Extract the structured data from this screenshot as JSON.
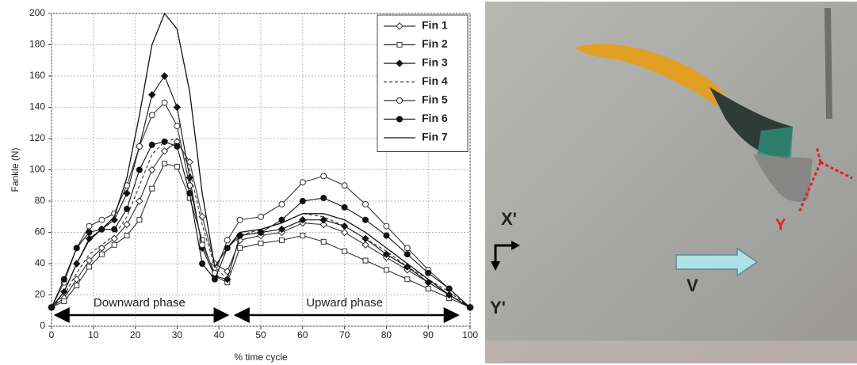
{
  "chart_data": {
    "type": "line",
    "xlabel": "% time cycle",
    "ylabel": "Fankle (N)",
    "x": [
      0,
      3,
      6,
      9,
      12,
      15,
      18,
      21,
      24,
      27,
      30,
      33,
      36,
      39,
      42,
      45,
      50,
      55,
      60,
      65,
      70,
      75,
      80,
      85,
      90,
      95,
      100
    ],
    "series": [
      {
        "name": "Fin 1",
        "color": "#333333",
        "marker": "diamond",
        "dash": false,
        "values": [
          12,
          18,
          30,
          42,
          50,
          56,
          65,
          80,
          100,
          112,
          118,
          105,
          70,
          40,
          35,
          55,
          58,
          60,
          66,
          65,
          60,
          52,
          44,
          36,
          28,
          20,
          12
        ]
      },
      {
        "name": "Fin 2",
        "color": "#333333",
        "marker": "square",
        "dash": false,
        "values": [
          12,
          16,
          26,
          38,
          46,
          52,
          58,
          68,
          88,
          104,
          102,
          82,
          55,
          32,
          28,
          50,
          53,
          55,
          58,
          54,
          48,
          42,
          36,
          30,
          24,
          18,
          12
        ]
      },
      {
        "name": "Fin 3",
        "color": "#111111",
        "marker": "filled-diamond",
        "dash": false,
        "values": [
          12,
          22,
          40,
          56,
          62,
          68,
          85,
          115,
          148,
          160,
          140,
          95,
          50,
          32,
          30,
          58,
          60,
          62,
          68,
          68,
          64,
          56,
          46,
          38,
          28,
          20,
          12
        ]
      },
      {
        "name": "Fin 4",
        "color": "#333333",
        "marker": "none",
        "dash": true,
        "values": [
          12,
          20,
          34,
          46,
          52,
          58,
          70,
          90,
          110,
          118,
          120,
          100,
          65,
          38,
          30,
          58,
          62,
          66,
          72,
          70,
          64,
          56,
          48,
          38,
          30,
          22,
          12
        ]
      },
      {
        "name": "Fin 5",
        "color": "#333333",
        "marker": "open-circle",
        "dash": false,
        "values": [
          12,
          28,
          50,
          64,
          68,
          72,
          90,
          115,
          135,
          143,
          128,
          90,
          52,
          34,
          55,
          68,
          70,
          78,
          92,
          96,
          90,
          78,
          64,
          50,
          36,
          24,
          12
        ]
      },
      {
        "name": "Fin 6",
        "color": "#111111",
        "marker": "filled-circle",
        "dash": false,
        "values": [
          12,
          30,
          50,
          60,
          62,
          62,
          75,
          100,
          116,
          118,
          115,
          85,
          40,
          30,
          50,
          58,
          60,
          68,
          80,
          82,
          76,
          68,
          58,
          46,
          34,
          24,
          12
        ]
      },
      {
        "name": "Fin 7",
        "color": "#111111",
        "marker": "none",
        "dash": false,
        "values": [
          12,
          22,
          40,
          55,
          62,
          70,
          95,
          135,
          180,
          200,
          190,
          150,
          85,
          38,
          50,
          60,
          62,
          66,
          72,
          72,
          68,
          60,
          50,
          40,
          30,
          20,
          12
        ]
      }
    ],
    "xlim": [
      0,
      100
    ],
    "xticks": [
      0,
      10,
      20,
      30,
      40,
      50,
      60,
      70,
      80,
      90,
      100
    ],
    "ylim": [
      0,
      200
    ],
    "yticks": [
      0,
      20,
      40,
      60,
      80,
      100,
      120,
      140,
      160,
      180,
      200
    ],
    "grid": true,
    "legend": "top-right",
    "annotations": [
      {
        "text": "Downward phase"
      },
      {
        "text": "Upward phase"
      }
    ]
  },
  "photo": {
    "frame_x_label": "X'",
    "frame_y_label": "Y'",
    "velocity_label": "V",
    "fin_label": "Y"
  }
}
